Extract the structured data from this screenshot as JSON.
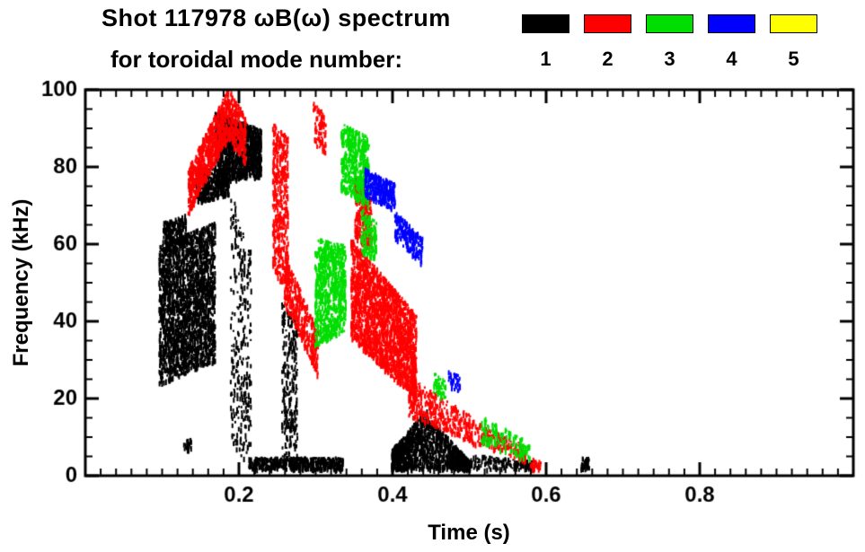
{
  "chart_data": {
    "type": "scatter",
    "title": "Shot 117978 ωB(ω) spectrum",
    "subtitle": "for toroidal mode number:",
    "xlabel": "Time (s)",
    "ylabel": "Frequency (kHz)",
    "xlim": [
      0.0,
      1.0
    ],
    "ylim": [
      0,
      100
    ],
    "xticks": [
      0.2,
      0.4,
      0.6,
      0.8
    ],
    "yticks": [
      0,
      20,
      40,
      60,
      80,
      100
    ],
    "x_minor_step": 0.02,
    "y_minor_step": 5,
    "grid": false,
    "legend_position": "top",
    "legend": [
      {
        "mode": "1",
        "color": "#000000"
      },
      {
        "mode": "2",
        "color": "#ff0000"
      },
      {
        "mode": "3",
        "color": "#00dd00"
      },
      {
        "mode": "4",
        "color": "#0000ff"
      },
      {
        "mode": "5",
        "color": "#ffff00"
      }
    ],
    "clusters": [
      {
        "mode": "1",
        "t": [
          0.095,
          0.168
        ],
        "f0": [
          24,
          60
        ],
        "f1": [
          30,
          66
        ],
        "n": 2200
      },
      {
        "mode": "1",
        "t": [
          0.1,
          0.13
        ],
        "f0": [
          58,
          66
        ],
        "f1": [
          60,
          68
        ],
        "n": 200
      },
      {
        "mode": "1",
        "t": [
          0.143,
          0.186
        ],
        "f0": [
          71,
          80
        ],
        "f1": [
          73,
          80
        ],
        "n": 400
      },
      {
        "mode": "1",
        "t": [
          0.168,
          0.228
        ],
        "f0": [
          76,
          95
        ],
        "f1": [
          78,
          90
        ],
        "n": 1200
      },
      {
        "mode": "1",
        "t": [
          0.188,
          0.215
        ],
        "f0": [
          6,
          74
        ],
        "f1": [
          4,
          60
        ],
        "n": 300
      },
      {
        "mode": "1",
        "t": [
          0.255,
          0.275
        ],
        "f0": [
          4,
          46
        ],
        "f1": [
          4,
          40
        ],
        "n": 260
      },
      {
        "mode": "1",
        "t": [
          0.212,
          0.335
        ],
        "f0": [
          2,
          5
        ],
        "f1": [
          2,
          5
        ],
        "n": 500
      },
      {
        "mode": "1",
        "t": [
          0.398,
          0.445
        ],
        "f0": [
          2,
          7
        ],
        "f1": [
          2,
          18
        ],
        "n": 700
      },
      {
        "mode": "1",
        "t": [
          0.445,
          0.5
        ],
        "f0": [
          2,
          16
        ],
        "f1": [
          2,
          4
        ],
        "n": 600
      },
      {
        "mode": "1",
        "t": [
          0.5,
          0.585
        ],
        "f0": [
          2,
          6
        ],
        "f1": [
          2,
          4
        ],
        "n": 150
      },
      {
        "mode": "1",
        "t": [
          0.643,
          0.655
        ],
        "f0": [
          2,
          5
        ],
        "f1": [
          2,
          5
        ],
        "n": 40
      },
      {
        "mode": "1",
        "t": [
          0.127,
          0.137
        ],
        "f0": [
          7,
          10
        ],
        "f1": [
          7,
          10
        ],
        "n": 25
      },
      {
        "mode": "2",
        "t": [
          0.133,
          0.186
        ],
        "f0": [
          68,
          80
        ],
        "f1": [
          88,
          101
        ],
        "n": 700
      },
      {
        "mode": "2",
        "t": [
          0.186,
          0.208
        ],
        "f0": [
          88,
          101
        ],
        "f1": [
          80,
          93
        ],
        "n": 250
      },
      {
        "mode": "2",
        "t": [
          0.243,
          0.263
        ],
        "f0": [
          52,
          92
        ],
        "f1": [
          50,
          88
        ],
        "n": 420
      },
      {
        "mode": "2",
        "t": [
          0.258,
          0.302
        ],
        "f0": [
          45,
          58
        ],
        "f1": [
          26,
          38
        ],
        "n": 420
      },
      {
        "mode": "2",
        "t": [
          0.296,
          0.312
        ],
        "f0": [
          86,
          97
        ],
        "f1": [
          84,
          94
        ],
        "n": 80
      },
      {
        "mode": "2",
        "t": [
          0.345,
          0.43
        ],
        "f0": [
          36,
          62
        ],
        "f1": [
          20,
          42
        ],
        "n": 2000
      },
      {
        "mode": "2",
        "t": [
          0.35,
          0.372
        ],
        "f0": [
          62,
          78
        ],
        "f1": [
          58,
          72
        ],
        "n": 250
      },
      {
        "mode": "2",
        "t": [
          0.42,
          0.5
        ],
        "f0": [
          16,
          26
        ],
        "f1": [
          9,
          16
        ],
        "n": 350
      },
      {
        "mode": "2",
        "t": [
          0.5,
          0.572
        ],
        "f0": [
          9,
          15
        ],
        "f1": [
          4,
          8
        ],
        "n": 180
      },
      {
        "mode": "2",
        "t": [
          0.578,
          0.592
        ],
        "f0": [
          2,
          5
        ],
        "f1": [
          2,
          4
        ],
        "n": 30
      },
      {
        "mode": "3",
        "t": [
          0.298,
          0.338
        ],
        "f0": [
          34,
          62
        ],
        "f1": [
          38,
          60
        ],
        "n": 800
      },
      {
        "mode": "3",
        "t": [
          0.332,
          0.368
        ],
        "f0": [
          74,
          92
        ],
        "f1": [
          70,
          88
        ],
        "n": 520
      },
      {
        "mode": "3",
        "t": [
          0.358,
          0.378
        ],
        "f0": [
          58,
          70
        ],
        "f1": [
          56,
          66
        ],
        "n": 140
      },
      {
        "mode": "3",
        "t": [
          0.452,
          0.468
        ],
        "f0": [
          21,
          27
        ],
        "f1": [
          20,
          25
        ],
        "n": 50
      },
      {
        "mode": "3",
        "t": [
          0.515,
          0.578
        ],
        "f0": [
          9,
          16
        ],
        "f1": [
          4,
          9
        ],
        "n": 150
      },
      {
        "mode": "4",
        "t": [
          0.363,
          0.402
        ],
        "f0": [
          73,
          80
        ],
        "f1": [
          69,
          76
        ],
        "n": 300
      },
      {
        "mode": "4",
        "t": [
          0.402,
          0.438
        ],
        "f0": [
          62,
          69
        ],
        "f1": [
          55,
          62
        ],
        "n": 220
      },
      {
        "mode": "4",
        "t": [
          0.472,
          0.487
        ],
        "f0": [
          23,
          28
        ],
        "f1": [
          22,
          26
        ],
        "n": 40
      }
    ]
  }
}
